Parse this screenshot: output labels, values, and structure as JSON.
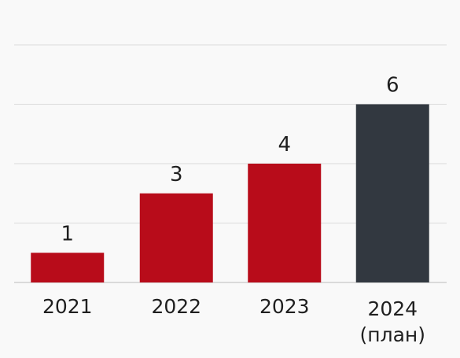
{
  "chart_data": {
    "type": "bar",
    "title": "",
    "xlabel": "",
    "ylabel": "",
    "ylim": [
      0,
      8
    ],
    "grid": true,
    "categories": [
      [
        "2021"
      ],
      [
        "2022"
      ],
      [
        "2023"
      ],
      [
        "2024",
        "(план)"
      ]
    ],
    "values": [
      1,
      3,
      4,
      6
    ],
    "colors": [
      "#b80c1a",
      "#b80c1a",
      "#b80c1a",
      "#323840"
    ]
  }
}
